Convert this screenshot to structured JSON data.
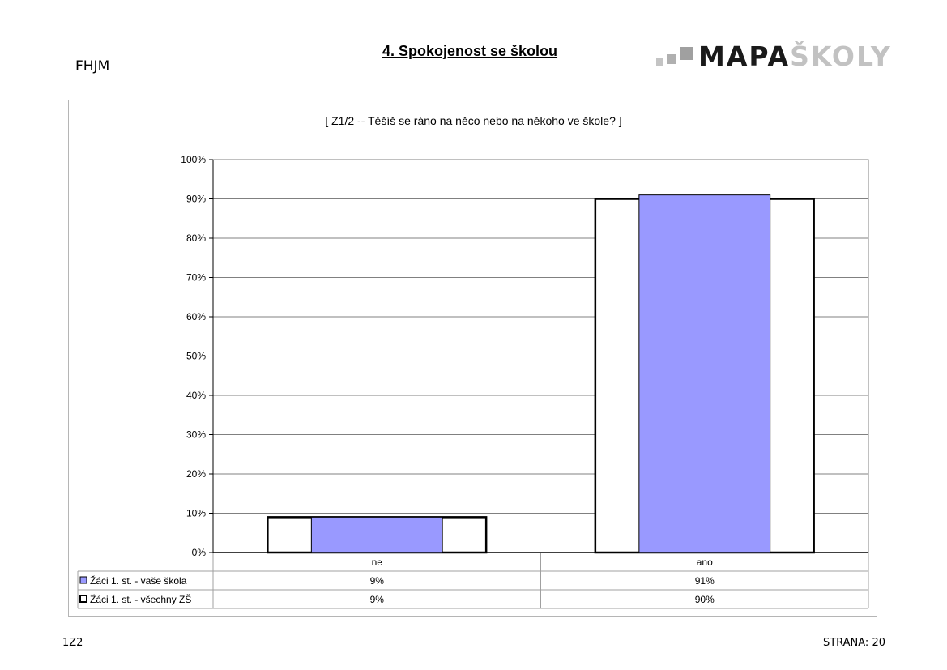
{
  "header": {
    "school_code": "FHJM",
    "title": "4. Spokojenost se školou",
    "logo": {
      "dark": "MAPA",
      "light": "ŠKOLY"
    }
  },
  "chart_data": {
    "type": "bar",
    "title": "[ Z1/2 -- Těšíš se ráno na něco nebo na někoho ve škole? ]",
    "categories": [
      "ne",
      "ano"
    ],
    "ylim": [
      0,
      100
    ],
    "yticks": [
      "0%",
      "10%",
      "20%",
      "30%",
      "40%",
      "50%",
      "60%",
      "70%",
      "80%",
      "90%",
      "100%"
    ],
    "grid": true,
    "legend": "data-table-below",
    "series": [
      {
        "name": "Žáci 1. st. - vaše škola",
        "values": [
          9,
          91
        ],
        "labels": [
          "9%",
          "91%"
        ],
        "color": "#9999ff"
      },
      {
        "name": "Žáci 1. st. - všechny ZŠ",
        "values": [
          9,
          90
        ],
        "labels": [
          "9%",
          "90%"
        ],
        "color": "#ffffff"
      }
    ]
  },
  "footer": {
    "left": "1Z2",
    "right": "STRANA: 20"
  }
}
